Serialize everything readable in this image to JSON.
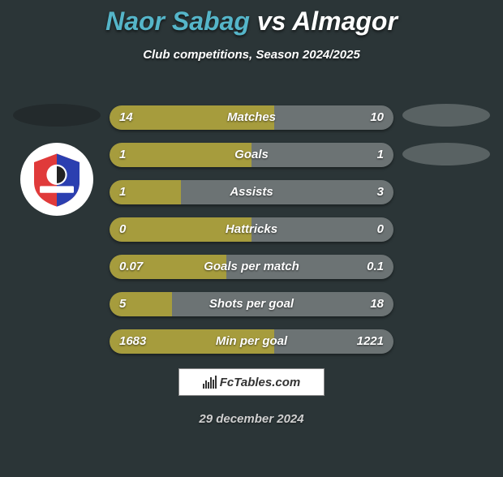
{
  "header": {
    "player1": "Naor Sabag",
    "vs": "vs",
    "player2": "Almagor",
    "subtitle": "Club competitions, Season 2024/2025"
  },
  "colors": {
    "background": "#2b3537",
    "player1_accent": "#55b5c9",
    "bar_left": "#a69c3d",
    "bar_right": "#6c7374",
    "bar_track": "#4f5a5c",
    "ellipse_dark": "#232a2c",
    "ellipse_light": "#596263"
  },
  "stats": [
    {
      "label": "Matches",
      "left_val": "14",
      "right_val": "10",
      "left_pct": 58,
      "right_pct": 42
    },
    {
      "label": "Goals",
      "left_val": "1",
      "right_val": "1",
      "left_pct": 50,
      "right_pct": 50
    },
    {
      "label": "Assists",
      "left_val": "1",
      "right_val": "3",
      "left_pct": 25,
      "right_pct": 75
    },
    {
      "label": "Hattricks",
      "left_val": "0",
      "right_val": "0",
      "left_pct": 50,
      "right_pct": 50
    },
    {
      "label": "Goals per match",
      "left_val": "0.07",
      "right_val": "0.1",
      "left_pct": 41,
      "right_pct": 59
    },
    {
      "label": "Shots per goal",
      "left_val": "5",
      "right_val": "18",
      "left_pct": 22,
      "right_pct": 78
    },
    {
      "label": "Min per goal",
      "left_val": "1683",
      "right_val": "1221",
      "left_pct": 58,
      "right_pct": 42
    }
  ],
  "footer": {
    "site_label": "FcTables.com",
    "date": "29 december 2024"
  }
}
